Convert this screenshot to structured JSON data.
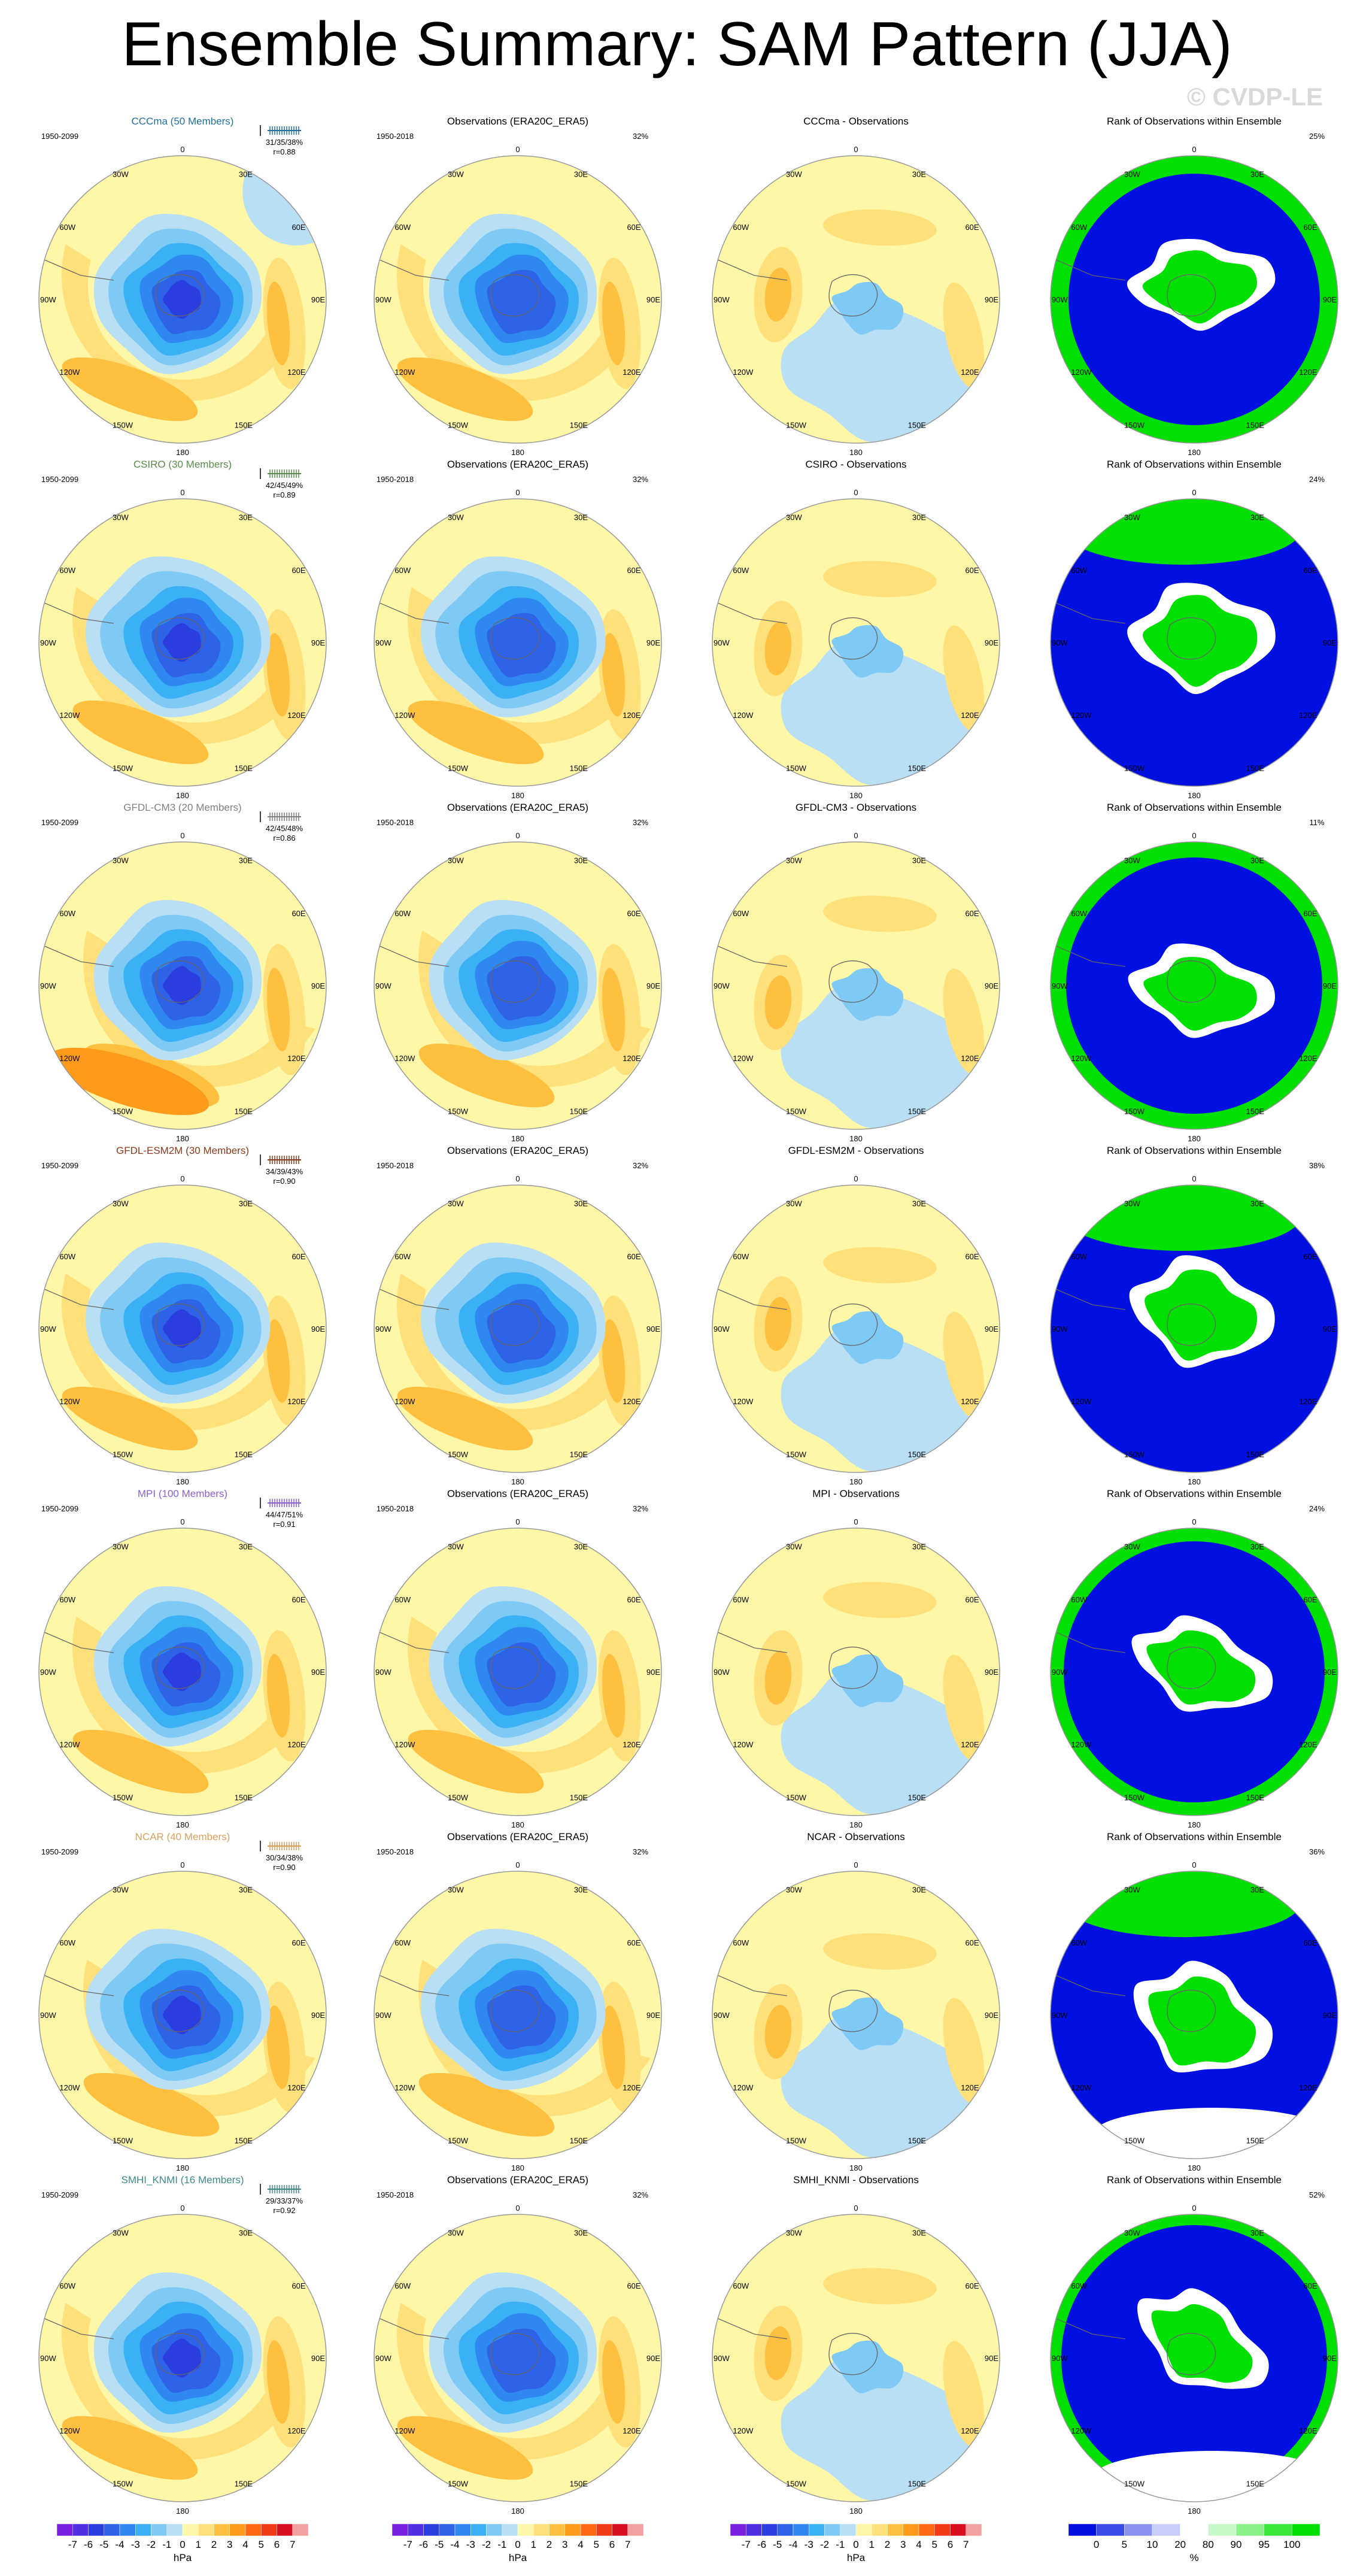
{
  "title": "Ensemble Summary: SAM Pattern (JJA)",
  "watermark": "© CVDP-LE",
  "colors": {
    "title_CCCma": "#1f6f9e",
    "title_CSIRO": "#5a8a4a",
    "title_GFDL-CM3": "#7f7f7f",
    "title_GFDL-ESM2M": "#8b3a1a",
    "title_MPI": "#8a5fd0",
    "title_NCAR": "#d9a05a",
    "title_SMHI_KNMI": "#3b8a86"
  },
  "obs_title": "Observations (ERA20C_ERA5)",
  "rank_title": "Rank of Observations within Ensemble",
  "model_period": "1950-2099",
  "obs_period": "1950-2018",
  "obs_pct": "32%",
  "lon_labels": [
    "0",
    "30E",
    "60E",
    "90E",
    "120E",
    "150E",
    "180",
    "150W",
    "120W",
    "90W",
    "60W",
    "30W"
  ],
  "rows": [
    {
      "model_title": "CCCma (50 Members)",
      "stats": "31/35/38%",
      "r": "r=0.88",
      "diff_title": "CCCma - Observations",
      "rank_pct": "25%",
      "color_key": "title_CCCma"
    },
    {
      "model_title": "CSIRO (30 Members)",
      "stats": "42/45/49%",
      "r": "r=0.89",
      "diff_title": "CSIRO - Observations",
      "rank_pct": "24%",
      "color_key": "title_CSIRO"
    },
    {
      "model_title": "GFDL-CM3 (20 Members)",
      "stats": "42/45/48%",
      "r": "r=0.86",
      "diff_title": "GFDL-CM3 - Observations",
      "rank_pct": "11%",
      "color_key": "title_GFDL-CM3"
    },
    {
      "model_title": "GFDL-ESM2M (30 Members)",
      "stats": "34/39/43%",
      "r": "r=0.90",
      "diff_title": "GFDL-ESM2M - Observations",
      "rank_pct": "38%",
      "color_key": "title_GFDL-ESM2M"
    },
    {
      "model_title": "MPI (100 Members)",
      "stats": "44/47/51%",
      "r": "r=0.91",
      "diff_title": "MPI - Observations",
      "rank_pct": "24%",
      "color_key": "title_MPI"
    },
    {
      "model_title": "NCAR (40 Members)",
      "stats": "30/34/38%",
      "r": "r=0.90",
      "diff_title": "NCAR - Observations",
      "rank_pct": "36%",
      "color_key": "title_NCAR"
    },
    {
      "model_title": "SMHI_KNMI (16 Members)",
      "stats": "29/33/37%",
      "r": "r=0.92",
      "diff_title": "SMHI_KNMI - Observations",
      "rank_pct": "52%",
      "color_key": "title_SMHI_KNMI"
    }
  ],
  "chart_data": [
    {
      "type": "heatmap",
      "title": "Ensemble Summary: SAM Pattern (JJA)",
      "description_note": "",
      "colorbar_hpa": {
        "unit": "hPa",
        "tick_labels": [
          "-7",
          "-6",
          "-5",
          "-4",
          "-3",
          "-2",
          "-1",
          "0",
          "1",
          "2",
          "3",
          "4",
          "5",
          "6",
          "7"
        ],
        "colors": [
          "#7a20e0",
          "#5030e0",
          "#2a3ee0",
          "#2e63e8",
          "#2f88f0",
          "#3ab0f5",
          "#7fcaf5",
          "#b9dff5",
          "#fff7a8",
          "#ffe07a",
          "#ffc040",
          "#ff9a1a",
          "#ff6a10",
          "#f03a18",
          "#d81020",
          "#f4a0a0"
        ]
      },
      "colorbar_pct": {
        "unit": "%",
        "tick_labels": [
          "0",
          "5",
          "10",
          "20",
          "80",
          "90",
          "95",
          "100"
        ],
        "colors": [
          "#0010e0",
          "#3c4ae8",
          "#8a92f0",
          "#c8ccf8",
          "#ffffff",
          "#c8f8c8",
          "#8af08a",
          "#3ae83a",
          "#00e000"
        ]
      }
    }
  ]
}
